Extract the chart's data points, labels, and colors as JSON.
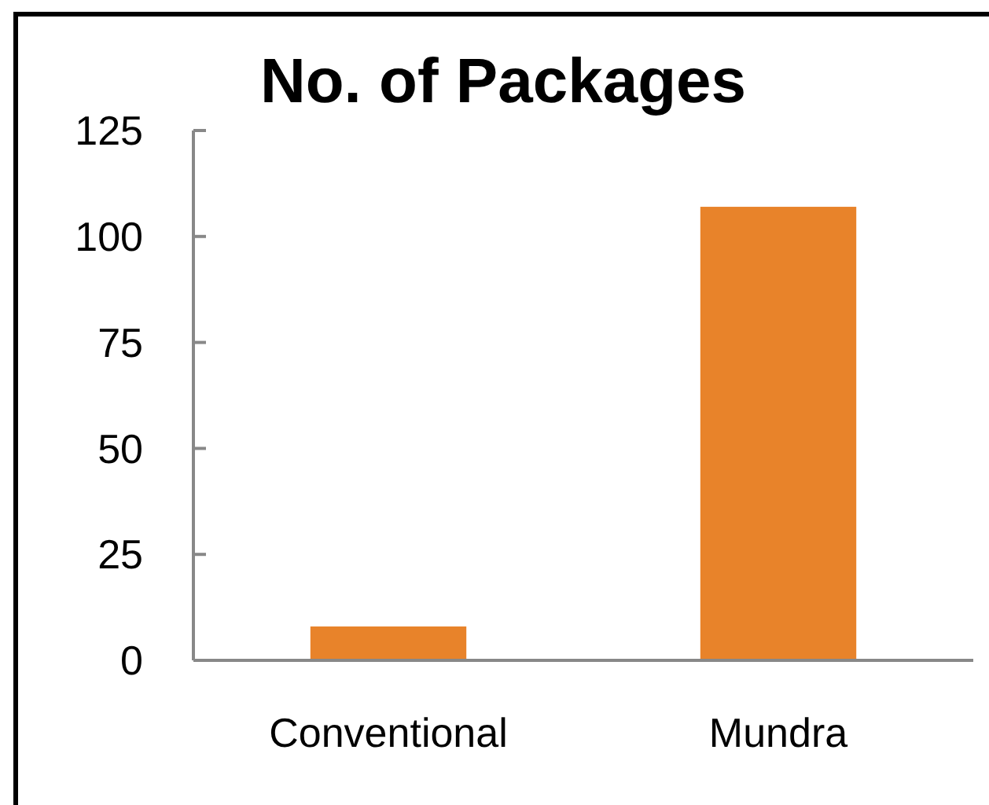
{
  "chart_data": {
    "type": "bar",
    "title": "No. of Packages",
    "categories": [
      "Conventional",
      "Mundra"
    ],
    "values": [
      8,
      107
    ],
    "color": "#e8832a",
    "ylim": [
      0,
      125
    ],
    "yticks": [
      0,
      25,
      50,
      75,
      100,
      125
    ],
    "grid": false
  }
}
